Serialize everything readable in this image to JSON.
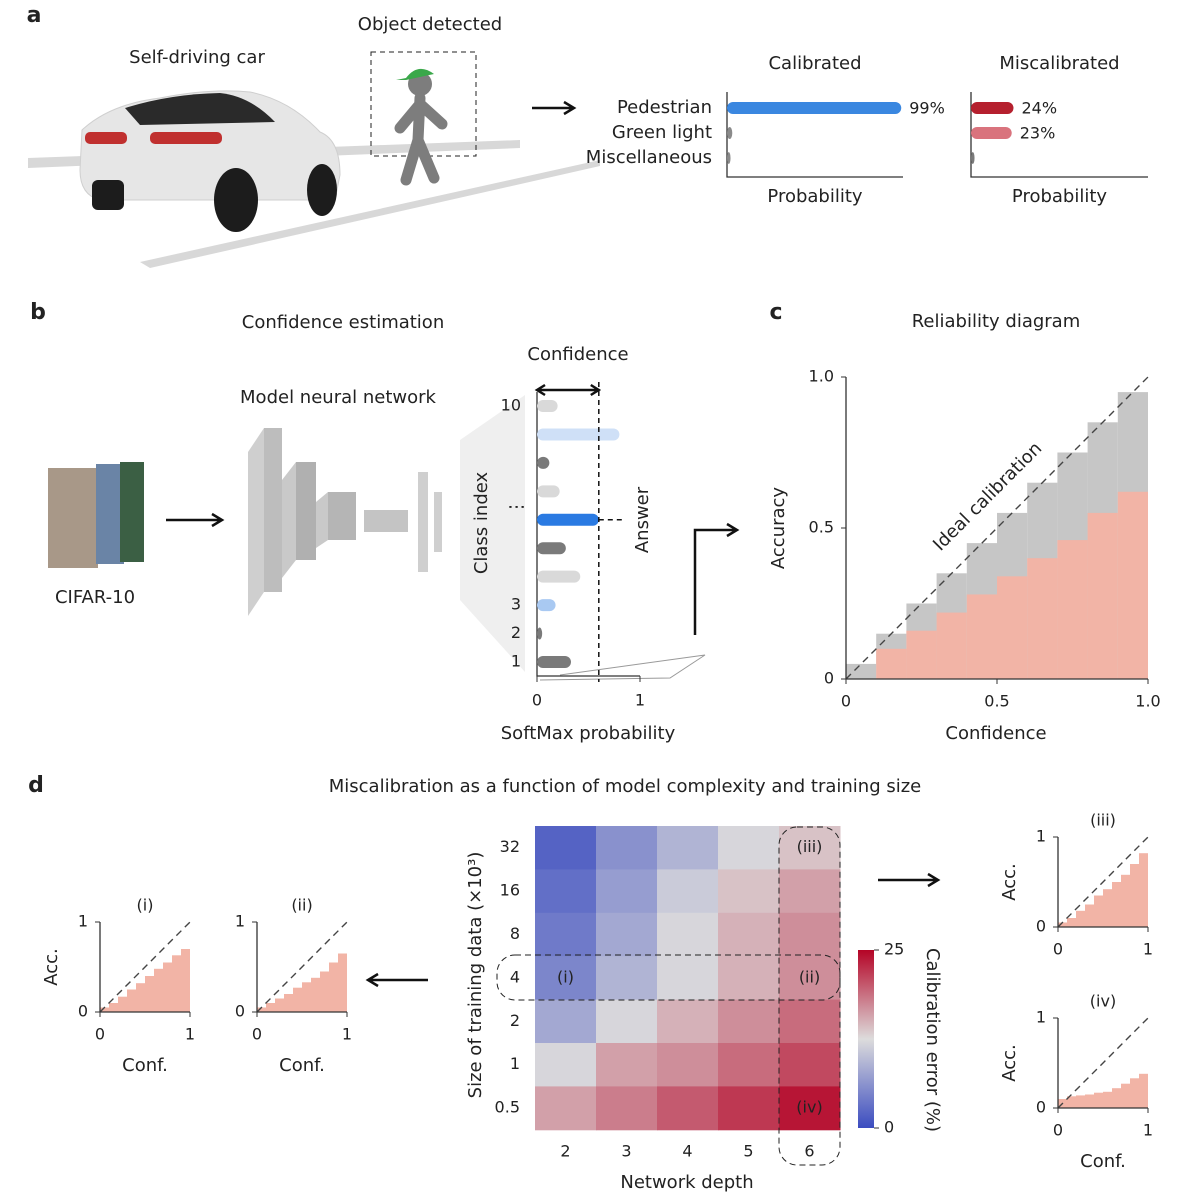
{
  "panel_a": {
    "label": "a",
    "car_label": "Self-driving car",
    "object_label": "Object detected",
    "categories": [
      "Pedestrian",
      "Green light",
      "Miscellaneous"
    ],
    "charts": [
      {
        "type": "bar",
        "title": "Calibrated",
        "xlabel": "Probability",
        "xlim": [
          0,
          100
        ],
        "values": [
          99,
          3,
          2
        ],
        "value_labels": [
          "99%",
          null,
          null
        ],
        "colors": [
          "#3a87e0",
          "#8a8a8a",
          "#8a8a8a"
        ]
      },
      {
        "type": "bar",
        "title": "Miscalibrated",
        "xlabel": "Probability",
        "xlim": [
          0,
          100
        ],
        "values": [
          24,
          23,
          2
        ],
        "value_labels": [
          "24%",
          "23%",
          null
        ],
        "colors": [
          "#b5202e",
          "#d9737d",
          "#7a7a7a"
        ]
      }
    ]
  },
  "panel_b": {
    "label": "b",
    "title": "Confidence estimation",
    "network_label": "Model neural network",
    "dataset_label": "CIFAR-10",
    "chart": {
      "type": "bar",
      "title": "Confidence",
      "xlabel": "SoftMax probability",
      "ylabel": "Class index",
      "annotation": "Answer",
      "ellipsis": "⋮",
      "categories": [
        "1",
        "2",
        "3",
        null,
        null,
        null,
        null,
        null,
        null,
        "10"
      ],
      "values": [
        0.33,
        0.05,
        0.18,
        0.42,
        0.28,
        0.6,
        0.22,
        0.12,
        0.8,
        0.2
      ],
      "colors": [
        "#7a7a7a",
        "#7a7a7a",
        "#a9c9f2",
        "#d9d9d9",
        "#7a7a7a",
        "#2a7ae2",
        "#d9d9d9",
        "#7a7a7a",
        "#cfe0f7",
        "#d9d9d9"
      ],
      "confidence": 0.6,
      "xlim": [
        0,
        1
      ],
      "xticks": [
        0,
        1
      ]
    }
  },
  "panel_c": {
    "label": "c",
    "chart": {
      "type": "step",
      "title": "Reliability diagram",
      "xlabel": "Confidence",
      "ylabel": "Accuracy",
      "annotation": "Ideal calibration",
      "bins": [
        0,
        0.1,
        0.2,
        0.3,
        0.4,
        0.5,
        0.6,
        0.7,
        0.8,
        0.9,
        1.0
      ],
      "series": [
        {
          "color": "#c6c6c6",
          "values": [
            0.05,
            0.15,
            0.25,
            0.35,
            0.45,
            0.55,
            0.65,
            0.75,
            0.85,
            0.95
          ]
        },
        {
          "color": "#f2b4a6",
          "values": [
            0,
            0.1,
            0.16,
            0.22,
            0.28,
            0.34,
            0.4,
            0.46,
            0.55,
            0.62
          ]
        }
      ],
      "xlim": [
        0,
        1
      ],
      "ylim": [
        0,
        1
      ],
      "xticks": [
        0,
        0.5,
        {
          "value": 1,
          "label": "1.0"
        }
      ],
      "yticks": [
        0,
        0.5,
        {
          "value": 1,
          "label": "1.0"
        }
      ]
    }
  },
  "panel_d": {
    "label": "d",
    "title": "Miscalibration as a function of model complexity and training size",
    "heatmap": {
      "type": "heatmap",
      "xlabel": "Network depth",
      "ylabel": "Size of training data (×10³)",
      "x": [
        2,
        3,
        4,
        5,
        6
      ],
      "y": [
        32,
        16,
        8,
        4,
        2,
        1,
        0.5
      ],
      "values": [
        [
          2,
          6,
          9,
          12,
          14
        ],
        [
          3,
          7,
          11,
          14,
          16
        ],
        [
          4,
          8,
          12,
          15,
          17
        ],
        [
          5,
          9,
          12,
          15,
          17
        ],
        [
          8,
          12,
          15,
          17,
          19
        ],
        [
          12,
          16,
          17,
          19,
          21
        ],
        [
          16,
          18,
          20,
          22,
          24
        ]
      ],
      "annotations": [
        "(i)",
        "(ii)",
        "(iii)",
        "(iv)"
      ],
      "colorbar": {
        "label": "Calibration error (%)",
        "lim": [
          0,
          25
        ],
        "ticks": [
          0,
          25
        ],
        "colors": [
          "#3b4cc0",
          "#dddcdc",
          "#b40426"
        ]
      }
    },
    "insets": [
      {
        "type": "step",
        "title": "(i)",
        "ylabel": "Acc.",
        "xlabel": "Conf.",
        "color": "#f2b4a6",
        "bins": [
          0,
          0.1,
          0.2,
          0.3,
          0.4,
          0.5,
          0.6,
          0.7,
          0.8,
          0.9,
          1.0
        ],
        "values": [
          0.05,
          0.1,
          0.17,
          0.25,
          0.32,
          0.4,
          0.48,
          0.55,
          0.63,
          0.7
        ],
        "xlim": [
          0,
          1
        ],
        "ylim": [
          0,
          1
        ],
        "xticks": [
          0,
          1
        ],
        "yticks": [
          0,
          1
        ]
      },
      {
        "type": "step",
        "title": "(ii)",
        "xlabel": "Conf.",
        "color": "#f2b4a6",
        "bins": [
          0,
          0.1,
          0.2,
          0.3,
          0.4,
          0.5,
          0.6,
          0.7,
          0.8,
          0.9,
          1.0
        ],
        "values": [
          0.05,
          0.1,
          0.15,
          0.2,
          0.27,
          0.33,
          0.38,
          0.45,
          0.55,
          0.65
        ],
        "xlim": [
          0,
          1
        ],
        "ylim": [
          0,
          1
        ],
        "xticks": [
          0,
          1
        ],
        "yticks": [
          0,
          1
        ]
      },
      {
        "type": "step",
        "title": "(iii)",
        "ylabel": "Acc.",
        "color": "#f2b4a6",
        "bins": [
          0,
          0.1,
          0.2,
          0.3,
          0.4,
          0.5,
          0.6,
          0.7,
          0.8,
          0.9,
          1.0
        ],
        "values": [
          0.05,
          0.1,
          0.18,
          0.25,
          0.35,
          0.42,
          0.5,
          0.58,
          0.7,
          0.82
        ],
        "xlim": [
          0,
          1
        ],
        "ylim": [
          0,
          1
        ],
        "xticks": [
          0,
          1
        ],
        "yticks": [
          0,
          1
        ]
      },
      {
        "type": "step",
        "title": "(iv)",
        "ylabel": "Acc.",
        "xlabel": "Conf.",
        "color": "#f2b4a6",
        "bins": [
          0,
          0.1,
          0.2,
          0.3,
          0.4,
          0.5,
          0.6,
          0.7,
          0.8,
          0.9,
          1.0
        ],
        "values": [
          0.1,
          0.13,
          0.14,
          0.15,
          0.17,
          0.18,
          0.22,
          0.27,
          0.33,
          0.38
        ],
        "xlim": [
          0,
          1
        ],
        "ylim": [
          0,
          1
        ],
        "xticks": [
          0,
          1
        ],
        "yticks": [
          0,
          1
        ]
      }
    ]
  }
}
